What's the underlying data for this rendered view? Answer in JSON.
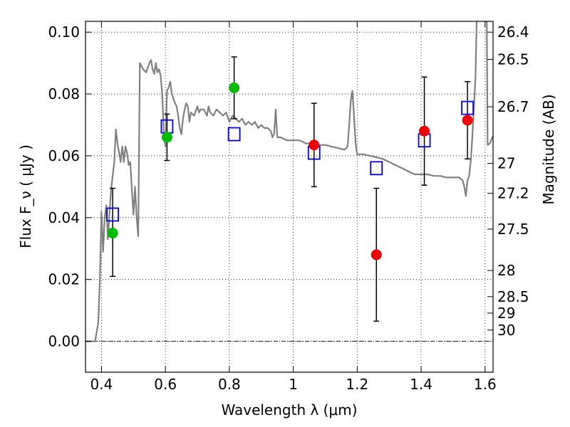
{
  "chart_data": {
    "type": "scatter",
    "xlabel": "Wavelength  λ (μm)",
    "ylabel": "Flux  F_ν  ( μJy )",
    "ylabel_right": "Magnitude (AB)",
    "xlim": [
      0.35,
      1.625
    ],
    "ylim": [
      -0.01,
      0.1035
    ],
    "x_ticks": [
      0.4,
      0.6,
      0.8,
      1.0,
      1.2,
      1.4,
      1.6
    ],
    "x_tick_labels": [
      "0.4",
      "0.6",
      "0.8",
      "1",
      "1.2",
      "1.4",
      "1.6"
    ],
    "y_ticks": [
      0.0,
      0.02,
      0.04,
      0.06,
      0.08,
      0.1
    ],
    "y_tick_labels": [
      "0.00",
      "0.02",
      "0.04",
      "0.06",
      "0.08",
      "0.10"
    ],
    "right_ticks": [
      {
        "label": "26.4",
        "mag": 26.4
      },
      {
        "label": "26.5",
        "mag": 26.5
      },
      {
        "label": "26.7",
        "mag": 26.7
      },
      {
        "label": "27",
        "mag": 27.0
      },
      {
        "label": "27.2",
        "mag": 27.2
      },
      {
        "label": "27.5",
        "mag": 27.5
      },
      {
        "label": "28",
        "mag": 28.0
      },
      {
        "label": "28.5",
        "mag": 28.5
      },
      {
        "label": "29",
        "mag": 29.0
      },
      {
        "label": "30",
        "mag": 30.0
      }
    ],
    "grid": true,
    "zero_line": true,
    "colors": {
      "model": "#808080",
      "green": "#00bb00",
      "red": "#ee0000",
      "box": "#0000dd",
      "errorbar": "#000000"
    },
    "series": [
      {
        "kind": "line",
        "color_key": "model",
        "points": [
          [
            0.35,
            0.0
          ],
          [
            0.37,
            0.0
          ],
          [
            0.38,
            0.0
          ],
          [
            0.39,
            0.006
          ],
          [
            0.395,
            0.02
          ],
          [
            0.4,
            0.042
          ],
          [
            0.405,
            0.029
          ],
          [
            0.41,
            0.04
          ],
          [
            0.415,
            0.044
          ],
          [
            0.42,
            0.033
          ],
          [
            0.425,
            0.041
          ],
          [
            0.43,
            0.049
          ],
          [
            0.44,
            0.058
          ],
          [
            0.445,
            0.0685
          ],
          [
            0.45,
            0.064
          ],
          [
            0.455,
            0.061
          ],
          [
            0.46,
            0.058
          ],
          [
            0.465,
            0.063
          ],
          [
            0.47,
            0.058
          ],
          [
            0.475,
            0.063
          ],
          [
            0.48,
            0.061
          ],
          [
            0.485,
            0.057
          ],
          [
            0.49,
            0.058
          ],
          [
            0.495,
            0.049
          ],
          [
            0.5,
            0.041
          ],
          [
            0.505,
            0.05
          ],
          [
            0.51,
            0.04
          ],
          [
            0.515,
            0.034
          ],
          [
            0.52,
            0.09
          ],
          [
            0.53,
            0.088
          ],
          [
            0.54,
            0.087
          ],
          [
            0.55,
            0.09
          ],
          [
            0.555,
            0.091
          ],
          [
            0.56,
            0.088
          ],
          [
            0.565,
            0.0865
          ],
          [
            0.57,
            0.09
          ],
          [
            0.575,
            0.087
          ],
          [
            0.58,
            0.088
          ],
          [
            0.585,
            0.086
          ],
          [
            0.59,
            0.08
          ],
          [
            0.595,
            0.067
          ],
          [
            0.6,
            0.063
          ],
          [
            0.605,
            0.081
          ],
          [
            0.61,
            0.082
          ],
          [
            0.615,
            0.084
          ],
          [
            0.62,
            0.08
          ],
          [
            0.63,
            0.077
          ],
          [
            0.635,
            0.076
          ],
          [
            0.64,
            0.073
          ],
          [
            0.645,
            0.069
          ],
          [
            0.65,
            0.067
          ],
          [
            0.655,
            0.072
          ],
          [
            0.66,
            0.075
          ],
          [
            0.665,
            0.077
          ],
          [
            0.67,
            0.076
          ],
          [
            0.675,
            0.071
          ],
          [
            0.68,
            0.074
          ],
          [
            0.69,
            0.073
          ],
          [
            0.7,
            0.076
          ],
          [
            0.705,
            0.074
          ],
          [
            0.71,
            0.075
          ],
          [
            0.72,
            0.075
          ],
          [
            0.73,
            0.073
          ],
          [
            0.735,
            0.076
          ],
          [
            0.74,
            0.074
          ],
          [
            0.75,
            0.073
          ],
          [
            0.76,
            0.075
          ],
          [
            0.77,
            0.074
          ],
          [
            0.78,
            0.073
          ],
          [
            0.79,
            0.074
          ],
          [
            0.8,
            0.071
          ],
          [
            0.81,
            0.073
          ],
          [
            0.82,
            0.072
          ],
          [
            0.83,
            0.071
          ],
          [
            0.84,
            0.072
          ],
          [
            0.85,
            0.07
          ],
          [
            0.86,
            0.071
          ],
          [
            0.87,
            0.07
          ],
          [
            0.88,
            0.071
          ],
          [
            0.89,
            0.069
          ],
          [
            0.9,
            0.07
          ],
          [
            0.91,
            0.069
          ],
          [
            0.92,
            0.069
          ],
          [
            0.93,
            0.068
          ],
          [
            0.935,
            0.066
          ],
          [
            0.94,
            0.067
          ],
          [
            0.945,
            0.075
          ],
          [
            0.95,
            0.066
          ],
          [
            0.96,
            0.066
          ],
          [
            0.98,
            0.065
          ],
          [
            1.0,
            0.065
          ],
          [
            1.02,
            0.065
          ],
          [
            1.04,
            0.064
          ],
          [
            1.06,
            0.064
          ],
          [
            1.08,
            0.0635
          ],
          [
            1.1,
            0.0635
          ],
          [
            1.12,
            0.063
          ],
          [
            1.14,
            0.0625
          ],
          [
            1.16,
            0.062
          ],
          [
            1.17,
            0.063
          ],
          [
            1.175,
            0.07
          ],
          [
            1.18,
            0.078
          ],
          [
            1.185,
            0.081
          ],
          [
            1.19,
            0.073
          ],
          [
            1.195,
            0.064
          ],
          [
            1.2,
            0.0605
          ],
          [
            1.22,
            0.0605
          ],
          [
            1.24,
            0.06
          ],
          [
            1.26,
            0.0595
          ],
          [
            1.28,
            0.059
          ],
          [
            1.3,
            0.058
          ],
          [
            1.32,
            0.057
          ],
          [
            1.34,
            0.056
          ],
          [
            1.36,
            0.055
          ],
          [
            1.38,
            0.054
          ],
          [
            1.4,
            0.054
          ],
          [
            1.42,
            0.054
          ],
          [
            1.44,
            0.0535
          ],
          [
            1.46,
            0.0535
          ],
          [
            1.48,
            0.053
          ],
          [
            1.5,
            0.053
          ],
          [
            1.52,
            0.053
          ],
          [
            1.53,
            0.052
          ],
          [
            1.535,
            0.05
          ],
          [
            1.54,
            0.047
          ],
          [
            1.545,
            0.052
          ],
          [
            1.55,
            0.0535
          ],
          [
            1.555,
            0.058
          ],
          [
            1.56,
            0.0655
          ],
          [
            1.57,
            0.085
          ],
          [
            1.575,
            0.11
          ],
          [
            1.58,
            0.12
          ],
          [
            1.6,
            0.12
          ],
          [
            1.605,
            0.11
          ],
          [
            1.608,
            0.0635
          ],
          [
            1.615,
            0.064
          ],
          [
            1.625,
            0.0665
          ]
        ]
      },
      {
        "kind": "errorbar",
        "color_key": "errorbar",
        "points": [
          {
            "x": 0.435,
            "y": 0.035,
            "yerr_low": 0.014,
            "yerr_high": 0.0145
          },
          {
            "x": 0.605,
            "y": 0.066,
            "yerr_low": 0.0075,
            "yerr_high": 0.0075
          },
          {
            "x": 0.815,
            "y": 0.082,
            "yerr_low": 0.01,
            "yerr_high": 0.01
          },
          {
            "x": 1.065,
            "y": 0.0635,
            "yerr_low": 0.0135,
            "yerr_high": 0.0135
          },
          {
            "x": 1.26,
            "y": 0.028,
            "yerr_low": 0.0215,
            "yerr_high": 0.0215
          },
          {
            "x": 1.41,
            "y": 0.068,
            "yerr_low": 0.0175,
            "yerr_high": 0.0175
          },
          {
            "x": 1.545,
            "y": 0.0715,
            "yerr_low": 0.0125,
            "yerr_high": 0.0125
          }
        ]
      },
      {
        "kind": "markers",
        "marker": "square",
        "color_key": "box",
        "points": [
          {
            "x": 0.435,
            "y": 0.041
          },
          {
            "x": 0.605,
            "y": 0.0695
          },
          {
            "x": 0.815,
            "y": 0.067
          },
          {
            "x": 1.065,
            "y": 0.061
          },
          {
            "x": 1.26,
            "y": 0.056
          },
          {
            "x": 1.41,
            "y": 0.065
          },
          {
            "x": 1.545,
            "y": 0.0755
          }
        ]
      },
      {
        "kind": "markers",
        "marker": "circle",
        "color_key": "green",
        "points": [
          {
            "x": 0.435,
            "y": 0.035
          },
          {
            "x": 0.605,
            "y": 0.066
          },
          {
            "x": 0.815,
            "y": 0.082
          }
        ]
      },
      {
        "kind": "markers",
        "marker": "circle",
        "color_key": "red",
        "points": [
          {
            "x": 1.065,
            "y": 0.0635
          },
          {
            "x": 1.26,
            "y": 0.028
          },
          {
            "x": 1.41,
            "y": 0.068
          },
          {
            "x": 1.545,
            "y": 0.0715
          }
        ]
      }
    ]
  }
}
